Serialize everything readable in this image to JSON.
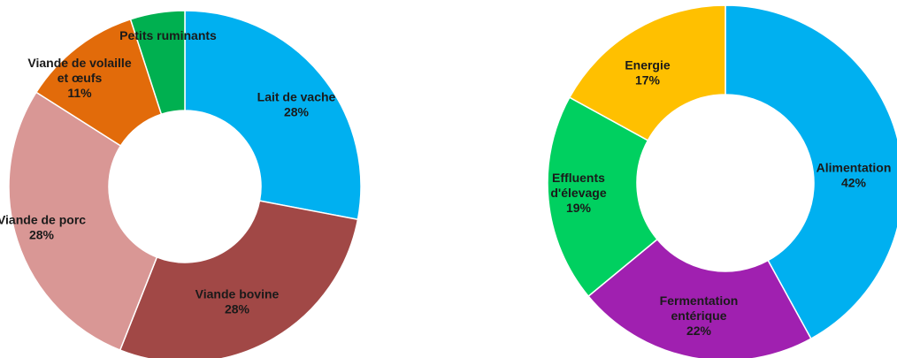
{
  "chart_data": [
    {
      "type": "pie",
      "donut": true,
      "slices": [
        {
          "name": "Lait de vache",
          "value": 28,
          "value_label": "28%",
          "color": "#00B0F0"
        },
        {
          "name": "Viande bovine",
          "value": 28,
          "value_label": "28%",
          "color": "#A14846"
        },
        {
          "name": "Viande de porc",
          "value": 28,
          "value_label": "28%",
          "color": "#D99795"
        },
        {
          "name": "Viande de volaille et œufs",
          "name_lines": [
            "Viande de volaille",
            "et œufs"
          ],
          "value": 11,
          "value_label": "11%",
          "color": "#E26B0A"
        },
        {
          "name": "Petits ruminants",
          "value": 5,
          "value_label": "",
          "color": "#00B050"
        }
      ]
    },
    {
      "type": "pie",
      "donut": true,
      "slices": [
        {
          "name": "Alimentation",
          "value": 42,
          "value_label": "42%",
          "color": "#00B0F0"
        },
        {
          "name": "Fermentation entérique",
          "name_lines": [
            "Fermentation",
            "entérique"
          ],
          "value": 22,
          "value_label": "22%",
          "color": "#A020B0"
        },
        {
          "name": "Effluents d'élevage",
          "name_lines": [
            "Effluents",
            "d'élevage"
          ],
          "value": 19,
          "value_label": "19%",
          "color": "#00D060"
        },
        {
          "name": "Energie",
          "value": 17,
          "value_label": "17%",
          "color": "#FFC000"
        }
      ]
    }
  ]
}
